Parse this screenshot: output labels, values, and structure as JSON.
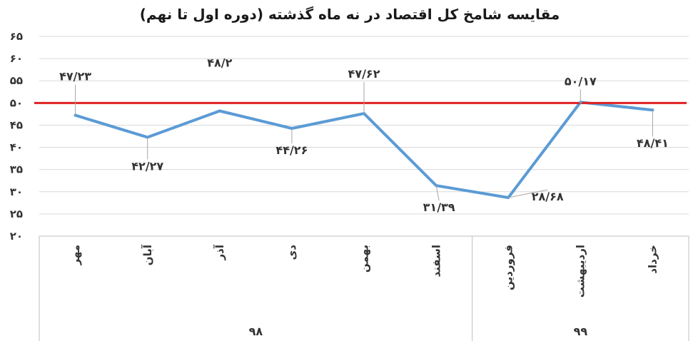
{
  "chart_data": {
    "type": "line",
    "title": "مقایسه شامخ کل اقتصاد در نه ماه گذشته (دوره اول تا نهم)",
    "categories": [
      "مهر",
      "آبان",
      "آذر",
      "دی",
      "بهمن",
      "اسفند",
      "فروردین",
      "اردیبهشت",
      "خرداد"
    ],
    "groups": [
      {
        "label": "۹۸",
        "count": 6
      },
      {
        "label": "۹۹",
        "count": 3
      }
    ],
    "series": [
      {
        "color": "#5b9bd5",
        "values": [
          47.23,
          42.27,
          48.2,
          44.26,
          47.62,
          31.39,
          28.68,
          50.17,
          48.41
        ],
        "labels": [
          "۴۷/۲۳",
          "۴۲/۲۷",
          "۴۸/۲",
          "۴۴/۲۶",
          "۴۷/۶۲",
          "۳۱/۳۹",
          "۲۸/۶۸",
          "۵۰/۱۷",
          "۴۸/۴۱"
        ]
      }
    ],
    "reference_line": {
      "value": 50,
      "color": "#e02020"
    },
    "ylim": [
      20,
      65
    ],
    "yticks": [
      20,
      25,
      30,
      35,
      40,
      45,
      50,
      55,
      60,
      65
    ],
    "ytick_labels": [
      "۲۰",
      "۲۵",
      "۳۰",
      "۳۵",
      "۴۰",
      "۴۵",
      "۵۰",
      "۵۵",
      "۶۰",
      "۶۵"
    ],
    "grid": true,
    "legend": "none"
  }
}
